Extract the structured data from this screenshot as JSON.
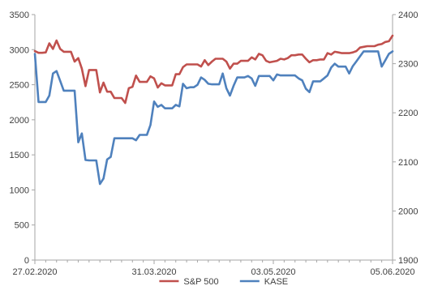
{
  "chart_data": {
    "type": "line",
    "title": "",
    "xlabel": "",
    "ylabel": "",
    "x_tick_labels": [
      "27.02.2020",
      "31.03.2020",
      "03.05.2020",
      "05.06.2020"
    ],
    "x_tick_positions": [
      0,
      33,
      66,
      99
    ],
    "y_left": {
      "range": [
        0,
        3500
      ],
      "ticks": [
        0,
        500,
        1000,
        1500,
        2000,
        2500,
        3000,
        3500
      ]
    },
    "y_right": {
      "range": [
        1900,
        2400
      ],
      "ticks": [
        1900,
        2000,
        2100,
        2200,
        2300,
        2400
      ]
    },
    "grid": false,
    "legend_position": "bottom",
    "series": [
      {
        "name": "S&P 500",
        "axis": "left",
        "color": "#c0504d",
        "values": [
          2980,
          2955,
          2955,
          2960,
          3090,
          3010,
          3130,
          3010,
          2970,
          2970,
          2970,
          2830,
          2880,
          2730,
          2480,
          2710,
          2710,
          2710,
          2390,
          2530,
          2400,
          2400,
          2310,
          2310,
          2310,
          2240,
          2450,
          2470,
          2630,
          2540,
          2540,
          2540,
          2620,
          2590,
          2460,
          2520,
          2490,
          2490,
          2490,
          2650,
          2650,
          2750,
          2790,
          2790,
          2790,
          2790,
          2760,
          2850,
          2780,
          2830,
          2870,
          2870,
          2870,
          2830,
          2730,
          2800,
          2800,
          2840,
          2840,
          2840,
          2890,
          2860,
          2940,
          2920,
          2840,
          2820,
          2830,
          2840,
          2870,
          2860,
          2880,
          2920,
          2920,
          2930,
          2930,
          2870,
          2820,
          2850,
          2850,
          2860,
          2860,
          2950,
          2930,
          2970,
          2960,
          2950,
          2950,
          2950,
          2960,
          2980,
          3030,
          3040,
          3050,
          3050,
          3050,
          3070,
          3080,
          3110,
          3120,
          3200
        ]
      },
      {
        "name": "KASE",
        "axis": "right",
        "color": "#4f81bd",
        "values": [
          2320,
          2222,
          2222,
          2222,
          2235,
          2280,
          2285,
          2265,
          2245,
          2245,
          2245,
          2245,
          2140,
          2158,
          2104,
          2103,
          2103,
          2103,
          2055,
          2066,
          2105,
          2110,
          2148,
          2148,
          2148,
          2148,
          2148,
          2148,
          2144,
          2155,
          2155,
          2155,
          2175,
          2223,
          2212,
          2216,
          2209,
          2209,
          2209,
          2216,
          2213,
          2259,
          2250,
          2252,
          2252,
          2257,
          2272,
          2267,
          2259,
          2258,
          2258,
          2258,
          2280,
          2250,
          2235,
          2255,
          2272,
          2272,
          2272,
          2275,
          2270,
          2255,
          2275,
          2275,
          2275,
          2275,
          2266,
          2278,
          2276,
          2276,
          2276,
          2276,
          2276,
          2270,
          2266,
          2249,
          2242,
          2264,
          2264,
          2264,
          2270,
          2276,
          2292,
          2300,
          2294,
          2294,
          2294,
          2280,
          2295,
          2305,
          2315,
          2325,
          2325,
          2325,
          2325,
          2325,
          2294,
          2307,
          2320,
          2325
        ]
      }
    ]
  }
}
